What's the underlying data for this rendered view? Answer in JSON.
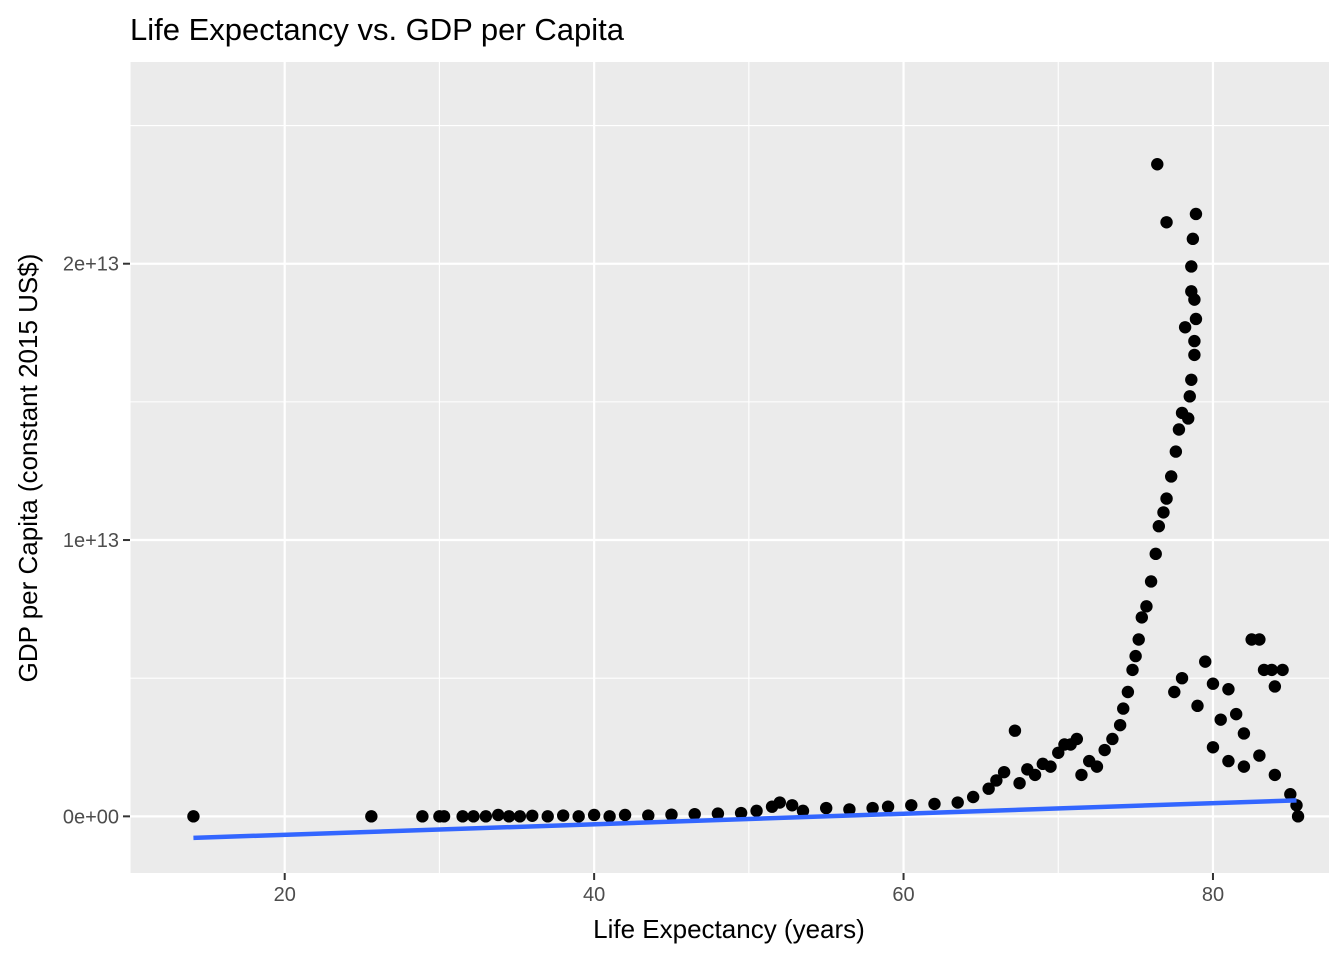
{
  "chart_data": {
    "type": "scatter",
    "title": "Life Expectancy vs. GDP per Capita",
    "xlabel": "Life Expectancy (years)",
    "ylabel": "GDP per Capita (constant 2015 US$)",
    "xlim": [
      10,
      87.5
    ],
    "ylim": [
      -2050000000000.0,
      27300000000000.0
    ],
    "x_ticks": [
      20,
      40,
      60,
      80
    ],
    "x_tick_labels": [
      "20",
      "40",
      "60",
      "80"
    ],
    "y_ticks": [
      0,
      10000000000000.0,
      20000000000000.0
    ],
    "y_tick_labels": [
      "0e+00",
      "1e+13",
      "2e+13"
    ],
    "grid": true,
    "legend": "none",
    "colors": {
      "panel": "#ebebeb",
      "points": "#000000",
      "trend": "#3366ff"
    },
    "series": [
      {
        "type": "scatter",
        "points": [
          [
            14.1,
            0
          ],
          [
            25.6,
            0
          ],
          [
            28.9,
            0
          ],
          [
            30.0,
            0
          ],
          [
            30.3,
            0
          ],
          [
            31.5,
            0
          ],
          [
            32.2,
            0
          ],
          [
            33.0,
            0
          ],
          [
            33.8,
            50000000000.0
          ],
          [
            34.5,
            0
          ],
          [
            35.2,
            0
          ],
          [
            36.0,
            20000000000.0
          ],
          [
            37.0,
            0
          ],
          [
            38.0,
            30000000000.0
          ],
          [
            39.0,
            0
          ],
          [
            40.0,
            50000000000.0
          ],
          [
            41.0,
            0
          ],
          [
            42.0,
            50000000000.0
          ],
          [
            43.5,
            30000000000.0
          ],
          [
            45.0,
            60000000000.0
          ],
          [
            46.5,
            80000000000.0
          ],
          [
            48.0,
            100000000000.0
          ],
          [
            49.5,
            120000000000.0
          ],
          [
            50.5,
            200000000000.0
          ],
          [
            51.5,
            350000000000.0
          ],
          [
            52.0,
            500000000000.0
          ],
          [
            52.8,
            400000000000.0
          ],
          [
            53.5,
            200000000000.0
          ],
          [
            55.0,
            300000000000.0
          ],
          [
            56.5,
            250000000000.0
          ],
          [
            58.0,
            300000000000.0
          ],
          [
            59.0,
            350000000000.0
          ],
          [
            60.5,
            400000000000.0
          ],
          [
            62.0,
            450000000000.0
          ],
          [
            63.5,
            500000000000.0
          ],
          [
            64.5,
            700000000000.0
          ],
          [
            65.5,
            1000000000000.0
          ],
          [
            66.0,
            1300000000000.0
          ],
          [
            66.5,
            1600000000000.0
          ],
          [
            67.2,
            3100000000000.0
          ],
          [
            67.5,
            1200000000000.0
          ],
          [
            68.0,
            1700000000000.0
          ],
          [
            68.5,
            1500000000000.0
          ],
          [
            69.0,
            1900000000000.0
          ],
          [
            69.5,
            1800000000000.0
          ],
          [
            70.0,
            2300000000000.0
          ],
          [
            70.4,
            2600000000000.0
          ],
          [
            70.8,
            2600000000000.0
          ],
          [
            71.2,
            2800000000000.0
          ],
          [
            71.5,
            1500000000000.0
          ],
          [
            72.0,
            2000000000000.0
          ],
          [
            72.5,
            1800000000000.0
          ],
          [
            73.0,
            2400000000000.0
          ],
          [
            73.5,
            2800000000000.0
          ],
          [
            74.0,
            3300000000000.0
          ],
          [
            74.2,
            3900000000000.0
          ],
          [
            74.5,
            4500000000000.0
          ],
          [
            74.8,
            5300000000000.0
          ],
          [
            75.0,
            5800000000000.0
          ],
          [
            75.2,
            6400000000000.0
          ],
          [
            75.4,
            7200000000000.0
          ],
          [
            75.7,
            7600000000000.0
          ],
          [
            76.0,
            8500000000000.0
          ],
          [
            76.3,
            9500000000000.0
          ],
          [
            76.4,
            23600000000000.0
          ],
          [
            76.5,
            10500000000000.0
          ],
          [
            76.8,
            11000000000000.0
          ],
          [
            77.0,
            21500000000000.0
          ],
          [
            77.0,
            11500000000000.0
          ],
          [
            77.3,
            12300000000000.0
          ],
          [
            77.6,
            13200000000000.0
          ],
          [
            77.8,
            14000000000000.0
          ],
          [
            78.0,
            14600000000000.0
          ],
          [
            78.2,
            17700000000000.0
          ],
          [
            78.4,
            14400000000000.0
          ],
          [
            78.5,
            15200000000000.0
          ],
          [
            78.6,
            15800000000000.0
          ],
          [
            78.6,
            19000000000000.0
          ],
          [
            78.6,
            19900000000000.0
          ],
          [
            78.7,
            20900000000000.0
          ],
          [
            78.8,
            16700000000000.0
          ],
          [
            78.8,
            17200000000000.0
          ],
          [
            78.8,
            18700000000000.0
          ],
          [
            78.9,
            18000000000000.0
          ],
          [
            78.9,
            21800000000000.0
          ],
          [
            77.5,
            4500000000000.0
          ],
          [
            78.0,
            5000000000000.0
          ],
          [
            79.0,
            4000000000000.0
          ],
          [
            79.5,
            5600000000000.0
          ],
          [
            80.0,
            4800000000000.0
          ],
          [
            80.5,
            3500000000000.0
          ],
          [
            81.0,
            4600000000000.0
          ],
          [
            81.5,
            3700000000000.0
          ],
          [
            82.0,
            3000000000000.0
          ],
          [
            82.5,
            6400000000000.0
          ],
          [
            83.0,
            6400000000000.0
          ],
          [
            83.3,
            5300000000000.0
          ],
          [
            83.8,
            5300000000000.0
          ],
          [
            84.0,
            4700000000000.0
          ],
          [
            84.5,
            5300000000000.0
          ],
          [
            80.0,
            2500000000000.0
          ],
          [
            81.0,
            2000000000000.0
          ],
          [
            82.0,
            1800000000000.0
          ],
          [
            83.0,
            2200000000000.0
          ],
          [
            84.0,
            1500000000000.0
          ],
          [
            85.0,
            800000000000.0
          ],
          [
            85.4,
            400000000000.0
          ],
          [
            85.5,
            0
          ]
        ]
      },
      {
        "type": "line",
        "points": [
          [
            14.1,
            -780000000000.0
          ],
          [
            85.4,
            580000000000.0
          ]
        ]
      }
    ]
  }
}
